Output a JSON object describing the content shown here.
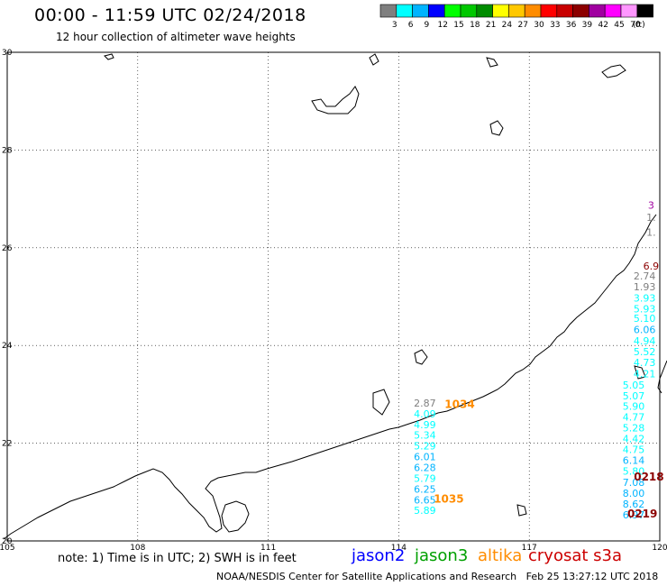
{
  "header": {
    "title": "00:00 - 11:59 UTC 02/24/2018",
    "subtitle": "12 hour collection of altimeter wave heights"
  },
  "legend": {
    "unit": "(ft)",
    "bins": [
      {
        "label": "3",
        "color": "#7f7f7f"
      },
      {
        "label": "6",
        "color": "#00ffff"
      },
      {
        "label": "9",
        "color": "#00b4ff"
      },
      {
        "label": "12",
        "color": "#0000ff"
      },
      {
        "label": "15",
        "color": "#00ff00"
      },
      {
        "label": "18",
        "color": "#00c800"
      },
      {
        "label": "21",
        "color": "#008c00"
      },
      {
        "label": "24",
        "color": "#ffff00"
      },
      {
        "label": "27",
        "color": "#ffc800"
      },
      {
        "label": "30",
        "color": "#ff8c00"
      },
      {
        "label": "33",
        "color": "#ff0000"
      },
      {
        "label": "36",
        "color": "#c80000"
      },
      {
        "label": "39",
        "color": "#8c0000"
      },
      {
        "label": "42",
        "color": "#a000a0"
      },
      {
        "label": "45",
        "color": "#ff00ff"
      },
      {
        "label": "70",
        "color": "#ff96ff"
      },
      {
        "label": "",
        "color": "#000000"
      }
    ]
  },
  "map": {
    "lon_ticks": [
      "105",
      "108",
      "111",
      "114",
      "117",
      "120"
    ],
    "lat_ticks": [
      "30",
      "28",
      "26",
      "24",
      "22",
      "20"
    ],
    "lon_range": [
      105,
      120
    ],
    "lat_range": [
      20,
      30
    ]
  },
  "tracks": [
    {
      "id": "track-east-upper",
      "x_lon": 119.8,
      "entries": [
        {
          "lat": 26.8,
          "text": "3",
          "color": "#a000a0"
        },
        {
          "lat": 26.55,
          "text": "1.",
          "color": "#7f7f7f"
        },
        {
          "lat": 26.25,
          "text": "1.",
          "color": "#7f7f7f"
        },
        {
          "lat": 25.55,
          "text": "6.9",
          "color": "#8c0000"
        }
      ]
    },
    {
      "id": "track-east-main",
      "x_lon": 119.65,
      "entries": [
        {
          "lat": 25.35,
          "text": "2.74",
          "color": "#7f7f7f"
        },
        {
          "lat": 25.13,
          "text": "1.93",
          "color": "#7f7f7f"
        },
        {
          "lat": 24.9,
          "text": "3.93",
          "color": "#00ffff"
        },
        {
          "lat": 24.68,
          "text": "5.93",
          "color": "#00ffff"
        },
        {
          "lat": 24.48,
          "text": "5.10",
          "color": "#00ffff"
        },
        {
          "lat": 24.25,
          "text": "6.06",
          "color": "#00b4ff"
        },
        {
          "lat": 24.02,
          "text": "4.94",
          "color": "#00ffff"
        },
        {
          "lat": 23.8,
          "text": "5.52",
          "color": "#00ffff"
        },
        {
          "lat": 23.58,
          "text": "4.73",
          "color": "#00ffff"
        },
        {
          "lat": 23.35,
          "text": "4.21",
          "color": "#00ffff"
        }
      ]
    },
    {
      "id": "track-east-lower",
      "x_lon": 119.4,
      "entries": [
        {
          "lat": 23.12,
          "text": "5.05",
          "color": "#00ffff"
        },
        {
          "lat": 22.9,
          "text": "5.07",
          "color": "#00ffff"
        },
        {
          "lat": 22.68,
          "text": "5.90",
          "color": "#00ffff"
        },
        {
          "lat": 22.46,
          "text": "4.77",
          "color": "#00ffff"
        },
        {
          "lat": 22.24,
          "text": "5.28",
          "color": "#00ffff"
        },
        {
          "lat": 22.02,
          "text": "4.42",
          "color": "#00ffff"
        },
        {
          "lat": 21.8,
          "text": "4.75",
          "color": "#00ffff"
        },
        {
          "lat": 21.58,
          "text": "6.14",
          "color": "#00b4ff"
        },
        {
          "lat": 21.36,
          "text": "5.80",
          "color": "#00ffff"
        },
        {
          "lat": 21.13,
          "text": "7.08",
          "color": "#00b4ff"
        },
        {
          "lat": 20.9,
          "text": "8.00",
          "color": "#00b4ff"
        },
        {
          "lat": 20.68,
          "text": "8.62",
          "color": "#00b4ff"
        },
        {
          "lat": 20.46,
          "text": "6.97",
          "color": "#00b4ff"
        }
      ]
    },
    {
      "id": "track-middle",
      "x_lon": 114.6,
      "entries": [
        {
          "lat": 22.75,
          "text": "2.87",
          "color": "#7f7f7f"
        },
        {
          "lat": 22.53,
          "text": "4.09",
          "color": "#00ffff"
        },
        {
          "lat": 22.31,
          "text": "4.99",
          "color": "#00ffff"
        },
        {
          "lat": 22.09,
          "text": "5.34",
          "color": "#00ffff"
        },
        {
          "lat": 21.87,
          "text": "5.29",
          "color": "#00ffff"
        },
        {
          "lat": 21.65,
          "text": "6.01",
          "color": "#00b4ff"
        },
        {
          "lat": 21.43,
          "text": "6.28",
          "color": "#00b4ff"
        },
        {
          "lat": 21.21,
          "text": "5.79",
          "color": "#00ffff"
        },
        {
          "lat": 20.99,
          "text": "6.25",
          "color": "#00b4ff"
        },
        {
          "lat": 20.77,
          "text": "6.65",
          "color": "#00b4ff"
        },
        {
          "lat": 20.55,
          "text": "5.89",
          "color": "#00ffff"
        }
      ]
    }
  ],
  "pass_labels": [
    {
      "text": "1034",
      "lon": 115.4,
      "lat": 22.72,
      "color": "#ff8c00"
    },
    {
      "text": "1035",
      "lon": 115.15,
      "lat": 20.78,
      "color": "#ff8c00"
    },
    {
      "text": "0218",
      "lon": 119.75,
      "lat": 21.24,
      "color": "#8c0000"
    },
    {
      "text": "0219",
      "lon": 119.6,
      "lat": 20.48,
      "color": "#8c0000"
    }
  ],
  "footer": {
    "note": "note: 1) Time is in UTC; 2) SWH is in feet",
    "satellites": [
      {
        "name": "jason2",
        "color": "#0000ff"
      },
      {
        "name": "jason3",
        "color": "#00a000"
      },
      {
        "name": "altika",
        "color": "#ff8c00"
      },
      {
        "name": "cryosat s3a",
        "color": "#cc0000"
      }
    ],
    "credit": "NOAA/NESDIS Center for Satellite Applications and Research   Feb 25 13:27:12 UTC 2018"
  }
}
